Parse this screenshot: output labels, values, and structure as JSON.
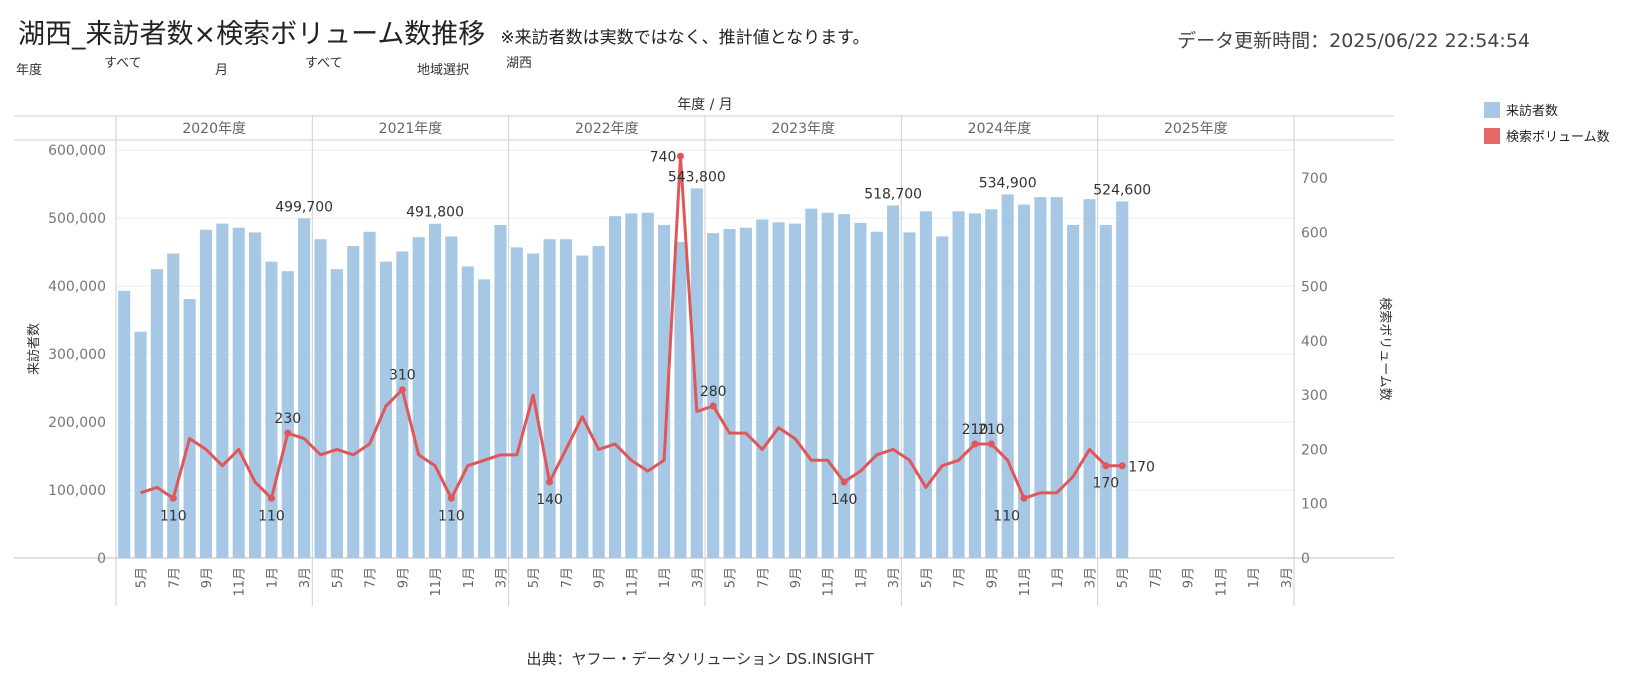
{
  "header": {
    "title": "湖西_来訪者数×検索ボリューム数推移",
    "note": "※来訪者数は実数ではなく、推計値となります。",
    "updated": "データ更新時間：2025/06/22 22:54:54"
  },
  "filters": [
    {
      "label": "年度",
      "value": "すべて"
    },
    {
      "label": "月",
      "value": "すべて"
    },
    {
      "label": "地域選択",
      "value": "湖西"
    }
  ],
  "legend": [
    {
      "name": "来訪者数",
      "color": "#a6c8e4"
    },
    {
      "name": "検索ボリューム数",
      "color": "#e8686a"
    }
  ],
  "source": "出典：ヤフー・データソリューション DS.INSIGHT",
  "chart_data": {
    "type": "bar",
    "header_label": "年度 / 月",
    "ylabel": "来訪者数",
    "y2label": "検索ボリューム数",
    "ylim": [
      0,
      615000
    ],
    "y2lim": [
      0,
      770
    ],
    "y_ticks": [
      "0",
      "100,000",
      "200,000",
      "300,000",
      "400,000",
      "500,000",
      "600,000"
    ],
    "y2_ticks": [
      "0",
      "100",
      "200",
      "300",
      "400",
      "500",
      "600",
      "700"
    ],
    "years": [
      "2020年度",
      "2021年度",
      "2022年度",
      "2023年度",
      "2024年度",
      "2025年度"
    ],
    "month_tick_labels": [
      "5月",
      "7月",
      "9月",
      "11月",
      "1月",
      "3月"
    ],
    "series": [
      {
        "name": "来訪者数",
        "type": "bar",
        "values": [
          393000,
          333000,
          425000,
          448000,
          381000,
          483000,
          492000,
          486000,
          479000,
          436000,
          422000,
          499700,
          469000,
          425000,
          459000,
          480000,
          436000,
          451000,
          472000,
          491800,
          473000,
          429000,
          410000,
          490000,
          457000,
          448000,
          469000,
          469000,
          445000,
          459000,
          503000,
          507000,
          508000,
          490000,
          465000,
          543800,
          478000,
          484000,
          486000,
          498000,
          494000,
          492000,
          514000,
          508000,
          506000,
          493000,
          480000,
          518700,
          479000,
          510000,
          473000,
          510000,
          507000,
          513000,
          534900,
          520000,
          531000,
          531000,
          490000,
          528000,
          490000,
          524600,
          null,
          null,
          null,
          null,
          null,
          null,
          null,
          null,
          null,
          null
        ]
      },
      {
        "name": "検索ボリューム数",
        "type": "line",
        "values": [
          null,
          120,
          130,
          110,
          220,
          200,
          170,
          200,
          140,
          110,
          230,
          220,
          190,
          200,
          190,
          210,
          280,
          310,
          190,
          170,
          110,
          170,
          180,
          190,
          190,
          300,
          140,
          200,
          260,
          200,
          210,
          180,
          160,
          180,
          740,
          270,
          280,
          230,
          230,
          200,
          240,
          220,
          180,
          180,
          140,
          160,
          190,
          200,
          180,
          130,
          170,
          180,
          210,
          210,
          180,
          110,
          120,
          120,
          150,
          200,
          170,
          170,
          null,
          null,
          null,
          null,
          null,
          null,
          null,
          null,
          null,
          null
        ]
      }
    ],
    "bar_labels": [
      {
        "index": 11,
        "text": "499,700"
      },
      {
        "index": 19,
        "text": "491,800"
      },
      {
        "index": 35,
        "text": "543,800"
      },
      {
        "index": 47,
        "text": "518,700"
      },
      {
        "index": 54,
        "text": "534,900"
      },
      {
        "index": 61,
        "text": "524,600"
      }
    ],
    "line_labels": [
      {
        "index": 3,
        "text": "110",
        "pos": "below"
      },
      {
        "index": 9,
        "text": "110",
        "pos": "below"
      },
      {
        "index": 10,
        "text": "230",
        "pos": "above"
      },
      {
        "index": 17,
        "text": "310",
        "pos": "above"
      },
      {
        "index": 20,
        "text": "110",
        "pos": "below"
      },
      {
        "index": 26,
        "text": "140",
        "pos": "below"
      },
      {
        "index": 34,
        "text": "740",
        "pos": "above-left"
      },
      {
        "index": 36,
        "text": "280",
        "pos": "above"
      },
      {
        "index": 44,
        "text": "140",
        "pos": "below"
      },
      {
        "index": 52,
        "text": "210",
        "pos": "above"
      },
      {
        "index": 53,
        "text": "210",
        "pos": "above"
      },
      {
        "index": 55,
        "text": "110",
        "pos": "below-left"
      },
      {
        "index": 60,
        "text": "170",
        "pos": "below"
      },
      {
        "index": 61,
        "text": "170",
        "pos": "right"
      }
    ]
  }
}
